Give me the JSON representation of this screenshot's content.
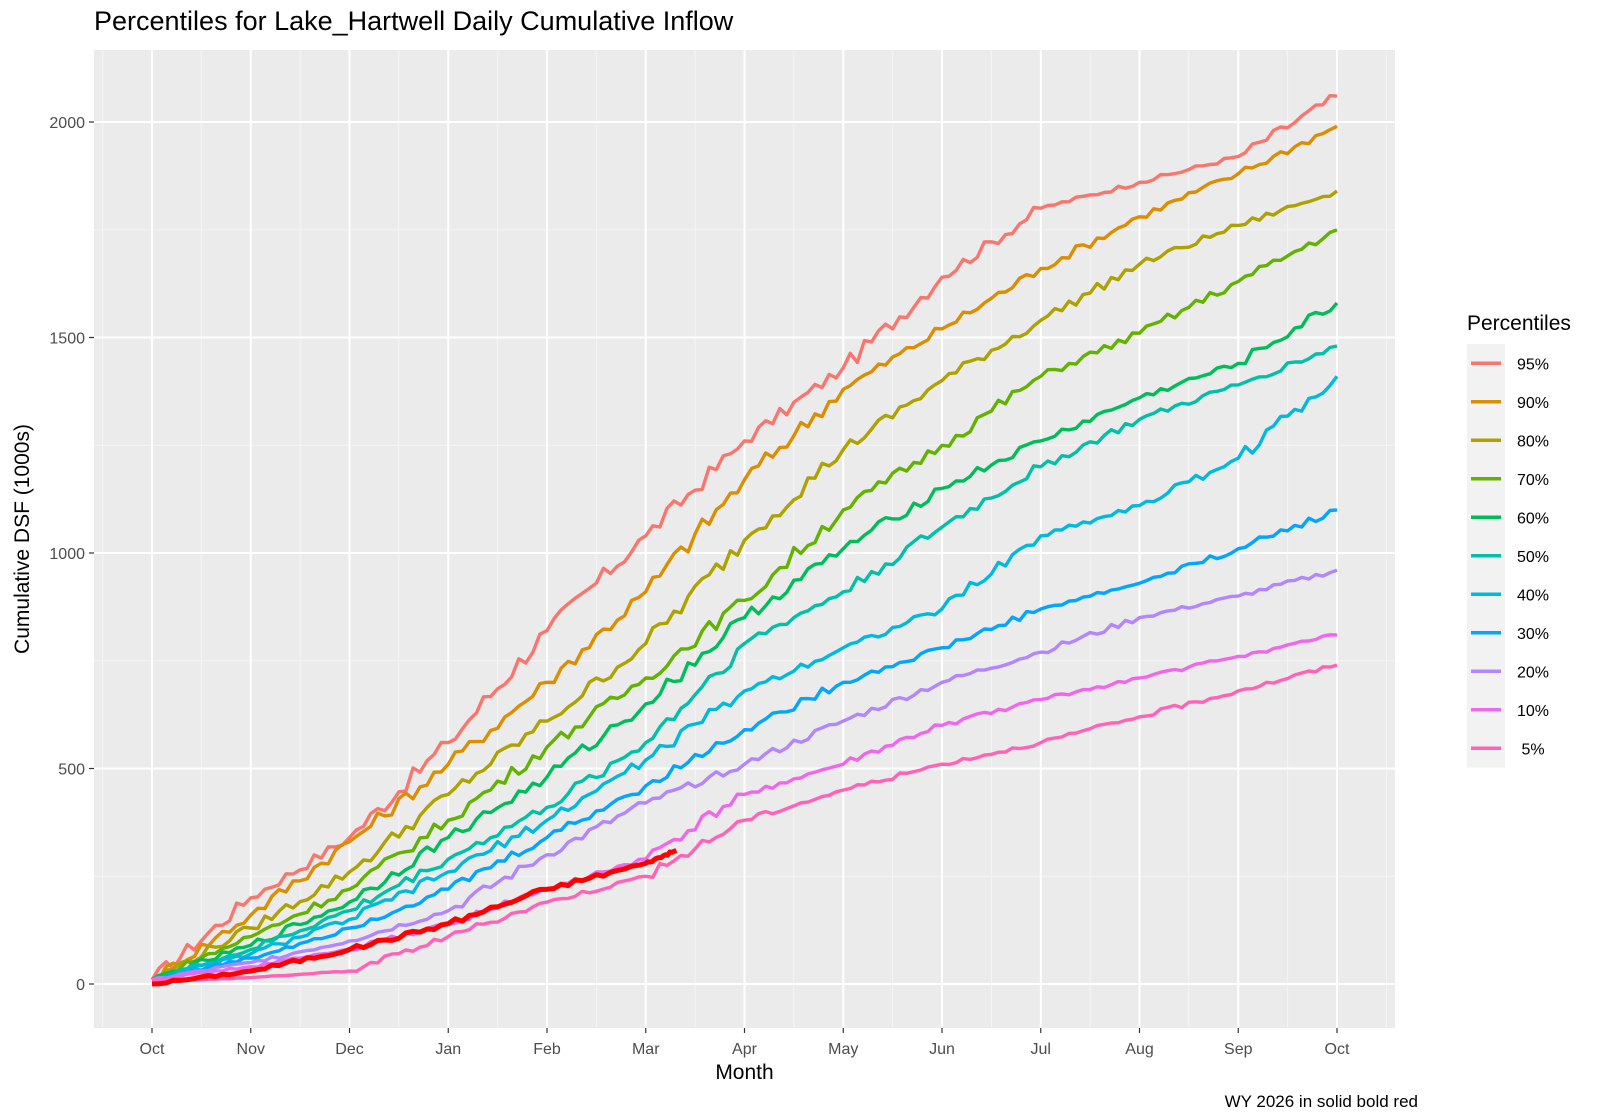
{
  "title": "Percentiles for Lake_Hartwell Daily Cumulative Inflow",
  "caption": "WY 2026 in solid  bold red",
  "chart_data": {
    "type": "line",
    "title": "Percentiles for Lake_Hartwell Daily Cumulative Inflow",
    "xlabel": "Month",
    "ylabel": "Cumulative DSF (1000s)",
    "x_tick_labels": [
      "Oct",
      "Nov",
      "Dec",
      "Jan",
      "Feb",
      "Mar",
      "Apr",
      "May",
      "Jun",
      "Jul",
      "Aug",
      "Sep",
      "Oct"
    ],
    "y_ticks": [
      0,
      500,
      1000,
      1500,
      2000
    ],
    "ylim": [
      -100,
      2150
    ],
    "grid": true,
    "legend": {
      "title": "Percentiles",
      "position": "right"
    },
    "x": [
      "Oct",
      "Nov",
      "Dec",
      "Jan",
      "Feb",
      "Mar",
      "Apr",
      "May",
      "Jun",
      "Jul",
      "Aug",
      "Sep",
      "Oct"
    ],
    "series": [
      {
        "name": "95%",
        "color": "#F8766D",
        "values": [
          10,
          200,
          340,
          560,
          820,
          1040,
          1260,
          1430,
          1640,
          1800,
          1860,
          1920,
          2060
        ]
      },
      {
        "name": "90%",
        "color": "#DB8E00",
        "values": [
          10,
          160,
          330,
          510,
          700,
          910,
          1170,
          1380,
          1520,
          1660,
          1780,
          1880,
          1990
        ]
      },
      {
        "name": "80%",
        "color": "#AEA200",
        "values": [
          10,
          130,
          260,
          440,
          610,
          790,
          1030,
          1240,
          1400,
          1540,
          1670,
          1760,
          1840
        ]
      },
      {
        "name": "70%",
        "color": "#64B200",
        "values": [
          10,
          110,
          220,
          380,
          550,
          710,
          890,
          1100,
          1250,
          1410,
          1510,
          1630,
          1750
        ]
      },
      {
        "name": "60%",
        "color": "#00BD5C",
        "values": [
          10,
          90,
          190,
          340,
          480,
          650,
          850,
          1010,
          1150,
          1260,
          1360,
          1440,
          1580
        ]
      },
      {
        "name": "50%",
        "color": "#00C1A7",
        "values": [
          10,
          80,
          170,
          290,
          410,
          560,
          790,
          910,
          1060,
          1200,
          1310,
          1390,
          1480
        ]
      },
      {
        "name": "40%",
        "color": "#00BADE",
        "values": [
          10,
          70,
          150,
          260,
          380,
          520,
          680,
          780,
          870,
          1040,
          1110,
          1220,
          1410
        ]
      },
      {
        "name": "30%",
        "color": "#00A6FF",
        "values": [
          10,
          60,
          130,
          220,
          340,
          460,
          590,
          700,
          780,
          870,
          930,
          1010,
          1100
        ]
      },
      {
        "name": "20%",
        "color": "#B385FF",
        "values": [
          10,
          50,
          100,
          170,
          300,
          420,
          510,
          610,
          700,
          770,
          850,
          900,
          960
        ]
      },
      {
        "name": "10%",
        "color": "#EF67EB",
        "values": [
          10,
          40,
          80,
          140,
          220,
          290,
          440,
          510,
          600,
          660,
          710,
          760,
          810
        ]
      },
      {
        "name": "5%",
        "color": "#FF63B6",
        "values": [
          5,
          15,
          30,
          110,
          190,
          250,
          380,
          450,
          510,
          560,
          620,
          680,
          740
        ]
      }
    ],
    "current_year": {
      "label": "WY 2026",
      "color": "#FF0000",
      "x": [
        "Oct",
        "Nov",
        "Dec",
        "Jan",
        "Feb",
        "Mar",
        "Mar 10"
      ],
      "values": [
        0,
        30,
        80,
        140,
        220,
        280,
        310
      ]
    }
  }
}
